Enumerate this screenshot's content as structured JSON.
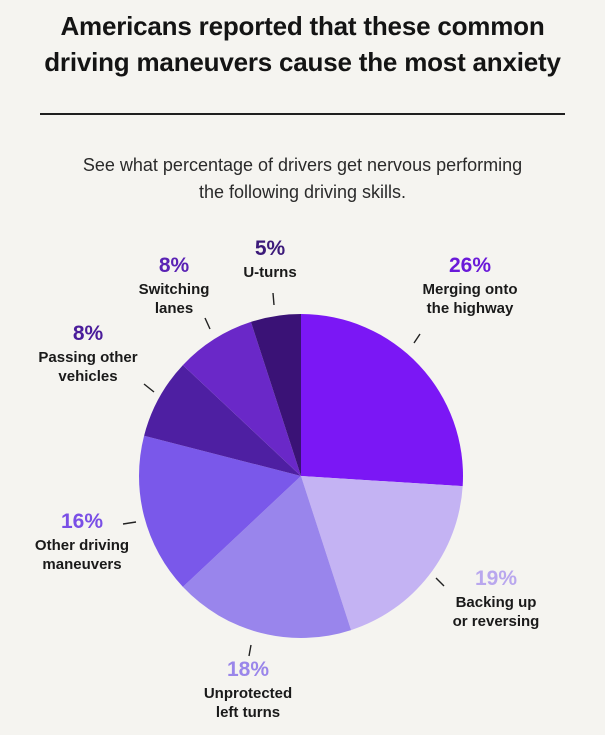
{
  "title_line1": "Americans reported that these common",
  "title_line2": "driving maneuvers cause the most anxiety",
  "subtitle_line1": "See what percentage of drivers get nervous performing",
  "subtitle_line2": "the following driving skills.",
  "chart_data": {
    "type": "pie",
    "slices": [
      {
        "label": "Merging onto the highway",
        "value": 26,
        "pct_text": "26%",
        "label_lines": [
          "Merging onto",
          "the highway"
        ],
        "color": "#7b17f5",
        "pct_color": "#6a1ad9"
      },
      {
        "label": "Backing up or reversing",
        "value": 19,
        "pct_text": "19%",
        "label_lines": [
          "Backing up",
          "or reversing"
        ],
        "color": "#c4b3f3",
        "pct_color": "#b9a7ee"
      },
      {
        "label": "Unprotected left turns",
        "value": 18,
        "pct_text": "18%",
        "label_lines": [
          "Unprotected",
          "left turns"
        ],
        "color": "#9985ec",
        "pct_color": "#9a86ea"
      },
      {
        "label": "Other driving maneuvers",
        "value": 16,
        "pct_text": "16%",
        "label_lines": [
          "Other driving",
          "maneuvers"
        ],
        "color": "#7a58ea",
        "pct_color": "#7a4fe6"
      },
      {
        "label": "Passing other vehicles",
        "value": 8,
        "pct_text": "8%",
        "label_lines": [
          "Passing other",
          "vehicles"
        ],
        "color": "#4e1fa2",
        "pct_color": "#4a1c9a"
      },
      {
        "label": "Switching lanes",
        "value": 8,
        "pct_text": "8%",
        "label_lines": [
          "Switching",
          "lanes"
        ],
        "color": "#6a28c8",
        "pct_color": "#5a22b4"
      },
      {
        "label": "U-turns",
        "value": 5,
        "pct_text": "5%",
        "label_lines": [
          "U-turns"
        ],
        "color": "#3a1276",
        "pct_color": "#3c1a7a"
      }
    ]
  }
}
